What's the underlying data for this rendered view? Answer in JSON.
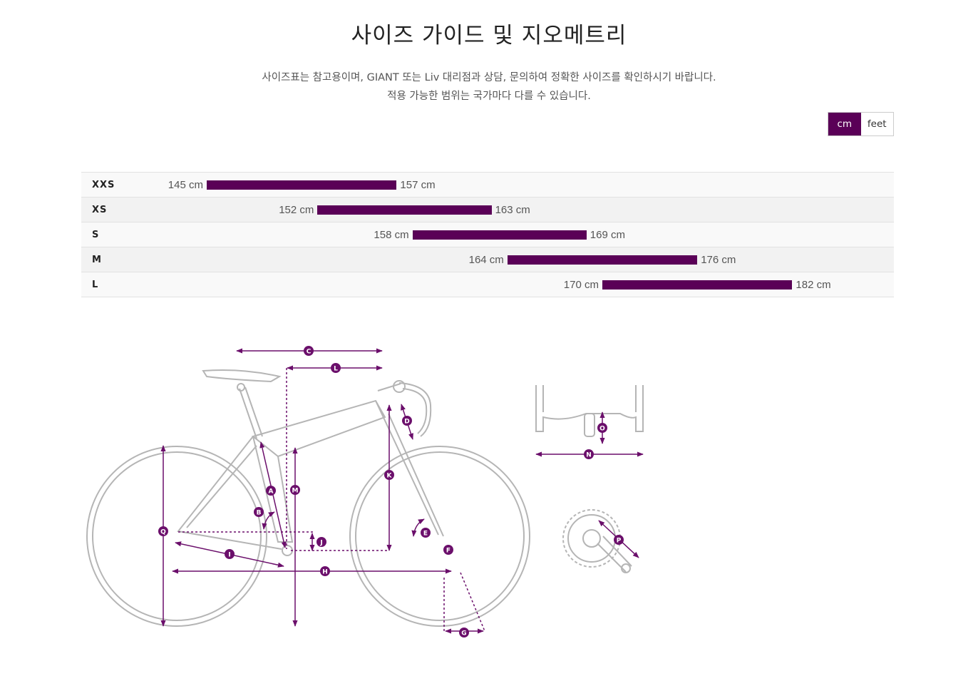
{
  "title": "사이즈 가이드 및 지오메트리",
  "subtitle": {
    "line1": "사이즈표는 참고용이며, GIANT 또는 Liv 대리점과 상담, 문의하여 정확한 사이즈를 확인하시기 바랍니다.",
    "line2": "적용 가능한 범위는 국가마다 다를 수 있습니다."
  },
  "units": {
    "cm": "cm",
    "feet": "feet",
    "selected": "cm"
  },
  "sizes": [
    {
      "label": "XXS",
      "min": "145 cm",
      "max": "157 cm",
      "min_value": 145,
      "max_value": 157
    },
    {
      "label": "XS",
      "min": "152 cm",
      "max": "163 cm",
      "min_value": 152,
      "max_value": 163
    },
    {
      "label": "S",
      "min": "158 cm",
      "max": "169 cm",
      "min_value": 158,
      "max_value": 169
    },
    {
      "label": "M",
      "min": "164 cm",
      "max": "176 cm",
      "min_value": 164,
      "max_value": 176
    },
    {
      "label": "L",
      "min": "170 cm",
      "max": "182 cm",
      "min_value": 170,
      "max_value": 182
    }
  ],
  "geometry_labels": [
    "A",
    "B",
    "C",
    "D",
    "E",
    "F",
    "G",
    "H",
    "I",
    "J",
    "K",
    "L",
    "M",
    "N",
    "O",
    "P",
    "Q"
  ],
  "colors": {
    "accent": "#5a0057",
    "outline": "#b0b0b0"
  }
}
